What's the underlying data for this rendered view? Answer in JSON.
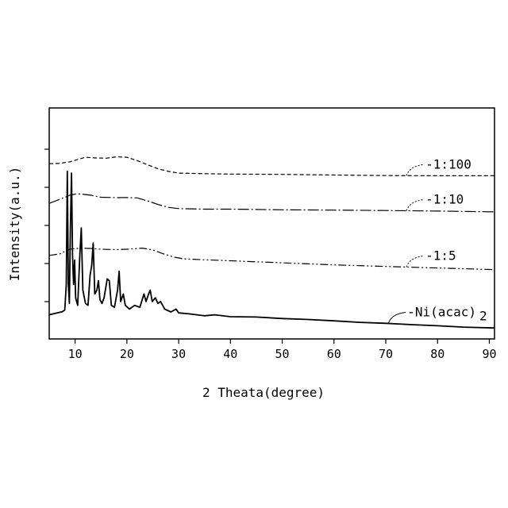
{
  "chart_data": {
    "type": "line",
    "title": "",
    "xlabel": "2 Theata(degree)",
    "ylabel": "Intensity(a.u.)",
    "xlim": [
      5,
      91
    ],
    "ylim": [
      0,
      100
    ],
    "x_ticks": [
      10,
      20,
      30,
      40,
      50,
      60,
      70,
      80,
      90
    ],
    "y_tick_labels_shown": false,
    "grid": false,
    "legend": "none",
    "line_color": "#000000",
    "series": [
      {
        "name": "-1:100",
        "line_style": "dashed",
        "points": [
          [
            5,
            89.0
          ],
          [
            7,
            89.1
          ],
          [
            9,
            90.0
          ],
          [
            10,
            90.8
          ],
          [
            12,
            92.4
          ],
          [
            14,
            92.0
          ],
          [
            16,
            91.9
          ],
          [
            18,
            92.6
          ],
          [
            20,
            92.4
          ],
          [
            22,
            90.6
          ],
          [
            24,
            88.4
          ],
          [
            26,
            86.3
          ],
          [
            28,
            84.9
          ],
          [
            30,
            84.0
          ],
          [
            35,
            83.7
          ],
          [
            40,
            83.5
          ],
          [
            50,
            83.3
          ],
          [
            60,
            83.0
          ],
          [
            70,
            82.7
          ],
          [
            80,
            82.6
          ],
          [
            91,
            82.6
          ]
        ]
      },
      {
        "name": "-1:10",
        "line_style": "dash-dot",
        "points": [
          [
            5,
            68.0
          ],
          [
            7,
            70.1
          ],
          [
            9,
            72.3
          ],
          [
            10,
            72.9
          ],
          [
            11,
            73.0
          ],
          [
            13,
            72.3
          ],
          [
            15,
            71.2
          ],
          [
            18,
            71.0
          ],
          [
            20,
            71.1
          ],
          [
            22,
            70.9
          ],
          [
            24,
            69.3
          ],
          [
            26,
            67.4
          ],
          [
            28,
            65.9
          ],
          [
            30,
            65.2
          ],
          [
            35,
            64.9
          ],
          [
            40,
            64.9
          ],
          [
            50,
            64.6
          ],
          [
            60,
            64.4
          ],
          [
            70,
            64.2
          ],
          [
            80,
            63.9
          ],
          [
            91,
            63.5
          ]
        ]
      },
      {
        "name": "-1:5",
        "line_style": "dash-dot-dot",
        "points": [
          [
            5,
            40.4
          ],
          [
            7,
            41.2
          ],
          [
            9,
            43.8
          ],
          [
            11,
            44.3
          ],
          [
            13,
            44.1
          ],
          [
            15,
            43.7
          ],
          [
            18,
            43.5
          ],
          [
            20,
            43.7
          ],
          [
            23,
            44.3
          ],
          [
            25,
            43.3
          ],
          [
            27,
            41.3
          ],
          [
            29,
            39.6
          ],
          [
            31,
            38.6
          ],
          [
            35,
            38.1
          ],
          [
            40,
            37.6
          ],
          [
            50,
            36.5
          ],
          [
            60,
            35.4
          ],
          [
            70,
            34.6
          ],
          [
            80,
            33.8
          ],
          [
            91,
            32.9
          ]
        ]
      },
      {
        "name": "-Ni(acac)",
        "name_subscript": "2",
        "line_style": "solid",
        "points": [
          [
            5,
            9.0
          ],
          [
            6.5,
            10.0
          ],
          [
            7.5,
            10.6
          ],
          [
            8.0,
            11.5
          ],
          [
            8.3,
            25.0
          ],
          [
            8.5,
            85.0
          ],
          [
            8.7,
            25.0
          ],
          [
            8.9,
            15.0
          ],
          [
            9.1,
            55.0
          ],
          [
            9.3,
            84.0
          ],
          [
            9.5,
            40.0
          ],
          [
            9.7,
            25.0
          ],
          [
            9.9,
            38.0
          ],
          [
            10.1,
            18.0
          ],
          [
            10.5,
            14.0
          ],
          [
            10.9,
            40.0
          ],
          [
            11.2,
            55.0
          ],
          [
            11.5,
            22.0
          ],
          [
            12.0,
            15.0
          ],
          [
            12.5,
            14.0
          ],
          [
            12.9,
            30.0
          ],
          [
            13.2,
            35.0
          ],
          [
            13.5,
            47.0
          ],
          [
            13.8,
            20.0
          ],
          [
            14.2,
            22.0
          ],
          [
            14.5,
            27.0
          ],
          [
            14.8,
            17.0
          ],
          [
            15.2,
            15.0
          ],
          [
            15.6,
            18.0
          ],
          [
            16.2,
            28.0
          ],
          [
            16.6,
            27.0
          ],
          [
            17.0,
            14.0
          ],
          [
            17.6,
            13.0
          ],
          [
            18.2,
            22.0
          ],
          [
            18.5,
            32.0
          ],
          [
            18.8,
            16.0
          ],
          [
            19.3,
            20.0
          ],
          [
            19.7,
            14.0
          ],
          [
            20.5,
            12.0
          ],
          [
            21.5,
            14.0
          ],
          [
            22.5,
            13.0
          ],
          [
            23.3,
            20.0
          ],
          [
            23.7,
            16.0
          ],
          [
            24.2,
            20.0
          ],
          [
            24.5,
            22.0
          ],
          [
            24.9,
            16.0
          ],
          [
            25.5,
            18.0
          ],
          [
            26.0,
            15.0
          ],
          [
            26.5,
            16.0
          ],
          [
            27.3,
            12.0
          ],
          [
            28.5,
            10.5
          ],
          [
            29.5,
            12.0
          ],
          [
            30.0,
            10.0
          ],
          [
            32,
            9.5
          ],
          [
            35,
            8.5
          ],
          [
            37,
            9.0
          ],
          [
            40,
            8.0
          ],
          [
            45,
            7.8
          ],
          [
            50,
            7.0
          ],
          [
            55,
            6.5
          ],
          [
            60,
            5.8
          ],
          [
            65,
            5.0
          ],
          [
            70,
            4.5
          ],
          [
            75,
            3.8
          ],
          [
            80,
            3.2
          ],
          [
            85,
            2.5
          ],
          [
            91,
            2.0
          ]
        ]
      }
    ]
  }
}
